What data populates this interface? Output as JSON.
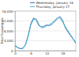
{
  "chart_data": {
    "type": "line",
    "y_label": "Total Passengers",
    "x": [
      0,
      1,
      2,
      3,
      4,
      5,
      6,
      7,
      8,
      9,
      10,
      11,
      12,
      13,
      14,
      15,
      16,
      17,
      18,
      19,
      20,
      21,
      22,
      23
    ],
    "series": [
      {
        "name": "Wednesday, January 16",
        "color": "#2a62a8",
        "values": [
          2000,
          1200,
          800,
          900,
          2600,
          6200,
          11000,
          13200,
          12400,
          10200,
          9600,
          9900,
          10400,
          10100,
          10700,
          11800,
          12900,
          13800,
          12200,
          9300,
          7600,
          6100,
          4600,
          3000
        ]
      },
      {
        "name": "Thursday, January 17",
        "color": "#45b5d6",
        "values": [
          2200,
          1400,
          900,
          1000,
          2400,
          5800,
          10400,
          12600,
          12900,
          10800,
          9200,
          9400,
          10000,
          10600,
          11200,
          12300,
          13400,
          13100,
          11600,
          9800,
          8100,
          6500,
          4900,
          3300
        ]
      }
    ],
    "xlim": [
      0,
      23
    ],
    "xticks": [
      0,
      6,
      12,
      18
    ],
    "ylim": [
      0,
      16000
    ],
    "yticks": [
      {
        "value": 0,
        "label": "0"
      },
      {
        "value": 4000,
        "label": "4,000"
      },
      {
        "value": 8000,
        "label": "8,000"
      },
      {
        "value": 12000,
        "label": "12,000"
      },
      {
        "value": 16000,
        "label": "16,000"
      }
    ],
    "grid": true,
    "legend": "top"
  }
}
